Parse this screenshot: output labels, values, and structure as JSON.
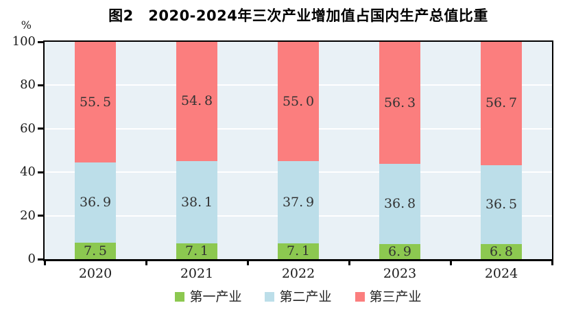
{
  "chart_data": {
    "type": "bar",
    "stacked": true,
    "title": "图2　2020-2024年三次产业增加值占国内生产总值比重",
    "unit_label": "%",
    "categories": [
      "2020",
      "2021",
      "2022",
      "2023",
      "2024"
    ],
    "series": [
      {
        "name": "第一产业",
        "color": "#8CC850",
        "values": [
          7.5,
          7.1,
          7.1,
          6.9,
          6.8
        ]
      },
      {
        "name": "第二产业",
        "color": "#BCDEE9",
        "values": [
          36.9,
          38.1,
          37.9,
          36.8,
          36.5
        ]
      },
      {
        "name": "第三产业",
        "color": "#FB7E7E",
        "values": [
          55.5,
          54.8,
          55.0,
          56.3,
          56.7
        ]
      }
    ],
    "ylim": [
      0,
      100
    ],
    "yticks": [
      0,
      20,
      40,
      60,
      80,
      100
    ],
    "grid": true,
    "grid_color": "#FFFFFF",
    "plot_background": "#E9F1F6",
    "axis_color": "#000000",
    "value_label_color": "#333333",
    "legend_position": "bottom"
  }
}
